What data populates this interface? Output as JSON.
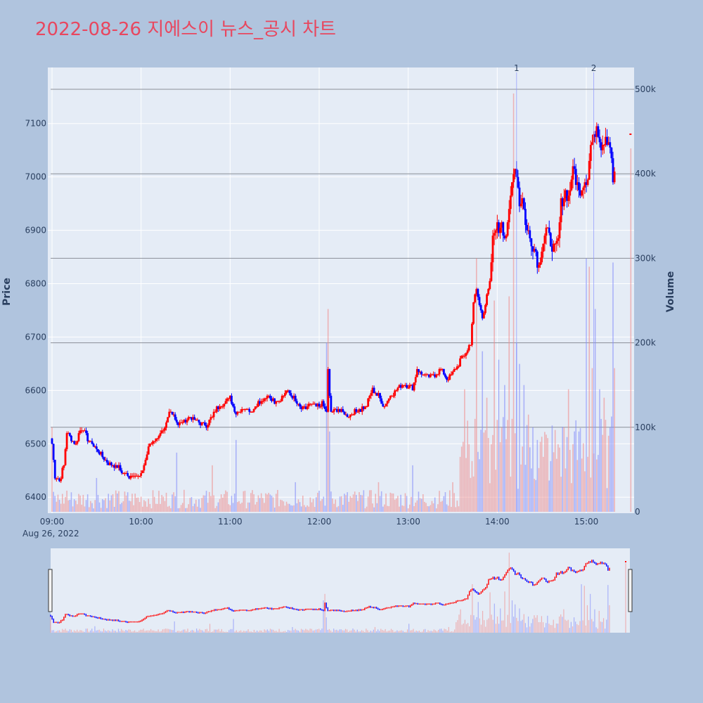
{
  "title": "2022-08-26 지에스이 뉴스_공시 차트",
  "colors": {
    "up": "#ff0000",
    "down": "#0000ff",
    "up_volume": "rgba(240,140,140,0.6)",
    "down_volume": "rgba(130,140,250,0.6)",
    "annotation": "rgba(140,150,255,0.7)",
    "title": "#e8475f",
    "background": "#b0c4de",
    "plot_bg": "#e5ecf6"
  },
  "chart_data": {
    "type": "candlestick",
    "title": "2022-08-26 지에스이 뉴스_공시 차트",
    "ylabel": "Price",
    "y2label": "Volume",
    "ylim": [
      6370,
      7205
    ],
    "y2lim": [
      0,
      520000
    ],
    "price_ticks": [
      "6400",
      "6500",
      "6600",
      "6700",
      "6800",
      "6900",
      "7000",
      "7100"
    ],
    "volume_ticks": [
      "0",
      "100k",
      "200k",
      "300k",
      "400k",
      "500k"
    ],
    "x_ticks": [
      "09:00",
      "10:00",
      "11:00",
      "12:00",
      "13:00",
      "14:00",
      "15:00"
    ],
    "x_date_label": "Aug 26, 2022",
    "x_range": [
      "09:00",
      "15:30"
    ],
    "volume_levels": [
      100000,
      200000,
      300000,
      400000,
      500000
    ],
    "annotations": [
      {
        "label": "1",
        "time": "14:13"
      },
      {
        "label": "2",
        "time": "15:05"
      }
    ],
    "price_path": [
      [
        "09:00",
        6500
      ],
      [
        "09:02",
        6440
      ],
      [
        "09:05",
        6430
      ],
      [
        "09:08",
        6460
      ],
      [
        "09:10",
        6520
      ],
      [
        "09:13",
        6510
      ],
      [
        "09:16",
        6500
      ],
      [
        "09:18",
        6520
      ],
      [
        "09:21",
        6530
      ],
      [
        "09:24",
        6510
      ],
      [
        "09:27",
        6500
      ],
      [
        "09:30",
        6490
      ],
      [
        "09:33",
        6480
      ],
      [
        "09:36",
        6470
      ],
      [
        "09:40",
        6460
      ],
      [
        "09:45",
        6455
      ],
      [
        "09:48",
        6445
      ],
      [
        "09:52",
        6440
      ],
      [
        "09:56",
        6442
      ],
      [
        "10:00",
        6440
      ],
      [
        "10:03",
        6470
      ],
      [
        "10:06",
        6500
      ],
      [
        "10:10",
        6510
      ],
      [
        "10:13",
        6520
      ],
      [
        "10:16",
        6525
      ],
      [
        "10:19",
        6560
      ],
      [
        "10:22",
        6555
      ],
      [
        "10:25",
        6535
      ],
      [
        "10:28",
        6540
      ],
      [
        "10:32",
        6550
      ],
      [
        "10:36",
        6545
      ],
      [
        "10:40",
        6540
      ],
      [
        "10:44",
        6535
      ],
      [
        "10:48",
        6550
      ],
      [
        "10:52",
        6570
      ],
      [
        "10:56",
        6575
      ],
      [
        "11:00",
        6590
      ],
      [
        "11:03",
        6560
      ],
      [
        "11:06",
        6560
      ],
      [
        "11:10",
        6570
      ],
      [
        "11:14",
        6560
      ],
      [
        "11:18",
        6575
      ],
      [
        "11:22",
        6580
      ],
      [
        "11:26",
        6590
      ],
      [
        "11:30",
        6580
      ],
      [
        "11:34",
        6585
      ],
      [
        "11:38",
        6600
      ],
      [
        "11:42",
        6590
      ],
      [
        "11:46",
        6570
      ],
      [
        "11:50",
        6565
      ],
      [
        "11:54",
        6575
      ],
      [
        "11:58",
        6570
      ],
      [
        "12:02",
        6575
      ],
      [
        "12:05",
        6560
      ],
      [
        "12:06",
        6640
      ],
      [
        "12:07",
        6590
      ],
      [
        "12:08",
        6560
      ],
      [
        "12:12",
        6565
      ],
      [
        "12:16",
        6560
      ],
      [
        "12:20",
        6550
      ],
      [
        "12:24",
        6560
      ],
      [
        "12:28",
        6565
      ],
      [
        "12:32",
        6570
      ],
      [
        "12:34",
        6590
      ],
      [
        "12:36",
        6600
      ],
      [
        "12:40",
        6590
      ],
      [
        "12:44",
        6570
      ],
      [
        "12:48",
        6590
      ],
      [
        "12:52",
        6600
      ],
      [
        "12:56",
        6610
      ],
      [
        "13:00",
        6610
      ],
      [
        "13:03",
        6605
      ],
      [
        "13:06",
        6640
      ],
      [
        "13:10",
        6630
      ],
      [
        "13:14",
        6625
      ],
      [
        "13:18",
        6630
      ],
      [
        "13:22",
        6640
      ],
      [
        "13:26",
        6620
      ],
      [
        "13:30",
        6635
      ],
      [
        "13:33",
        6645
      ],
      [
        "13:36",
        6660
      ],
      [
        "13:39",
        6670
      ],
      [
        "13:42",
        6690
      ],
      [
        "13:44",
        6760
      ],
      [
        "13:46",
        6790
      ],
      [
        "13:48",
        6760
      ],
      [
        "13:50",
        6740
      ],
      [
        "13:52",
        6760
      ],
      [
        "13:55",
        6800
      ],
      [
        "13:57",
        6880
      ],
      [
        "13:59",
        6910
      ],
      [
        "14:01",
        6900
      ],
      [
        "14:03",
        6920
      ],
      [
        "14:05",
        6890
      ],
      [
        "14:07",
        6900
      ],
      [
        "14:09",
        6960
      ],
      [
        "14:11",
        7020
      ],
      [
        "14:13",
        7010
      ],
      [
        "14:15",
        6950
      ],
      [
        "14:17",
        6960
      ],
      [
        "14:20",
        6900
      ],
      [
        "14:23",
        6880
      ],
      [
        "14:26",
        6860
      ],
      [
        "14:28",
        6830
      ],
      [
        "14:30",
        6870
      ],
      [
        "14:33",
        6900
      ],
      [
        "14:36",
        6880
      ],
      [
        "14:39",
        6860
      ],
      [
        "14:41",
        6880
      ],
      [
        "14:43",
        6950
      ],
      [
        "14:46",
        6970
      ],
      [
        "14:48",
        6960
      ],
      [
        "14:50",
        7000
      ],
      [
        "14:52",
        7010
      ],
      [
        "14:55",
        6970
      ],
      [
        "14:58",
        6990
      ],
      [
        "15:01",
        7000
      ],
      [
        "15:03",
        7060
      ],
      [
        "15:05",
        7070
      ],
      [
        "15:07",
        7100
      ],
      [
        "15:10",
        7060
      ],
      [
        "15:13",
        7080
      ],
      [
        "15:16",
        7060
      ],
      [
        "15:18",
        6990
      ],
      [
        "15:19",
        7010
      ]
    ],
    "volume_spikes": [
      [
        "09:00",
        100000
      ],
      [
        "09:10",
        25000
      ],
      [
        "09:30",
        40000
      ],
      [
        "10:24",
        70000
      ],
      [
        "10:48",
        55000
      ],
      [
        "11:04",
        85000
      ],
      [
        "11:44",
        35000
      ],
      [
        "12:05",
        200000
      ],
      [
        "12:06",
        240000
      ],
      [
        "12:07",
        95000
      ],
      [
        "12:40",
        35000
      ],
      [
        "13:03",
        55000
      ],
      [
        "13:30",
        35000
      ],
      [
        "13:35",
        65000
      ],
      [
        "13:38",
        145000
      ],
      [
        "13:41",
        80000
      ],
      [
        "13:43",
        60000
      ],
      [
        "13:45",
        110000
      ],
      [
        "13:46",
        300000
      ],
      [
        "13:50",
        190000
      ],
      [
        "13:53",
        135000
      ],
      [
        "13:56",
        80000
      ],
      [
        "13:58",
        250000
      ],
      [
        "14:01",
        180000
      ],
      [
        "14:03",
        100000
      ],
      [
        "14:05",
        150000
      ],
      [
        "14:08",
        255000
      ],
      [
        "14:10",
        110000
      ],
      [
        "14:11",
        495000
      ],
      [
        "14:13",
        200000
      ],
      [
        "14:15",
        175000
      ],
      [
        "14:18",
        150000
      ],
      [
        "14:21",
        115000
      ],
      [
        "14:24",
        100000
      ],
      [
        "14:27",
        85000
      ],
      [
        "14:31",
        65000
      ],
      [
        "14:36",
        60000
      ],
      [
        "14:41",
        80000
      ],
      [
        "14:45",
        100000
      ],
      [
        "14:48",
        145000
      ],
      [
        "14:51",
        80000
      ],
      [
        "14:55",
        95000
      ],
      [
        "15:00",
        300000
      ],
      [
        "15:02",
        290000
      ],
      [
        "15:04",
        170000
      ],
      [
        "15:06",
        240000
      ],
      [
        "15:09",
        145000
      ],
      [
        "15:12",
        135000
      ],
      [
        "15:15",
        90000
      ],
      [
        "15:18",
        295000
      ],
      [
        "15:19",
        170000
      ],
      [
        "15:30",
        430000
      ]
    ],
    "last_price_marker": 7080
  }
}
